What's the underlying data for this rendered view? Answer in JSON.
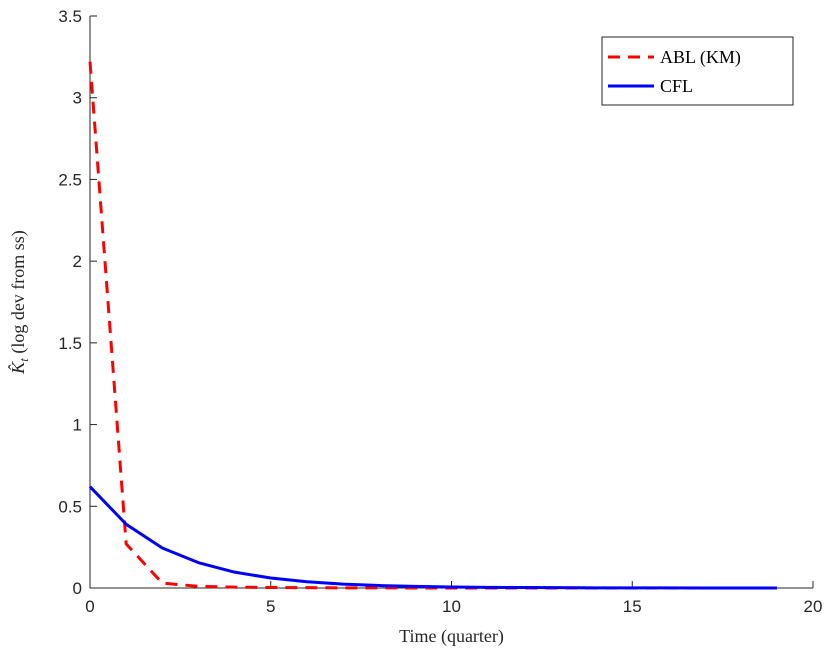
{
  "chart_data": {
    "type": "line",
    "xlabel": "Time (quarter)",
    "ylabel_symbol": "K̂",
    "ylabel_subscript": "t",
    "ylabel_rest": " (log dev from ss)",
    "xlim": [
      0,
      20
    ],
    "ylim": [
      0,
      3.5
    ],
    "xticks": [
      0,
      5,
      10,
      15,
      20
    ],
    "yticks": [
      0,
      0.5,
      1,
      1.5,
      2,
      2.5,
      3,
      3.5
    ],
    "xtick_labels": [
      "0",
      "5",
      "10",
      "15",
      "20"
    ],
    "ytick_labels": [
      "0",
      "0.5",
      "1",
      "1.5",
      "2",
      "2.5",
      "3",
      "3.5"
    ],
    "grid": false,
    "legend_position": "top-right",
    "x": [
      0,
      1,
      2,
      3,
      4,
      5,
      6,
      7,
      8,
      9,
      10,
      11,
      12,
      13,
      14,
      15,
      16,
      17,
      18,
      19
    ],
    "series": [
      {
        "name": "ABL (KM)",
        "color": "#ff0000",
        "style": "dashed",
        "values": [
          3.22,
          0.27,
          0.03,
          0.01,
          0.005,
          0.003,
          0.002,
          0.001,
          0.001,
          0.0,
          0.0,
          0.0,
          0.0,
          0.0,
          0.0,
          0.0,
          0.0,
          0.0,
          0.0,
          0.0
        ]
      },
      {
        "name": "CFL",
        "color": "#0000ff",
        "style": "solid",
        "values": [
          0.62,
          0.39,
          0.245,
          0.155,
          0.097,
          0.061,
          0.038,
          0.024,
          0.015,
          0.01,
          0.006,
          0.004,
          0.003,
          0.002,
          0.001,
          0.001,
          0.001,
          0.0,
          0.0,
          0.0
        ]
      }
    ]
  }
}
